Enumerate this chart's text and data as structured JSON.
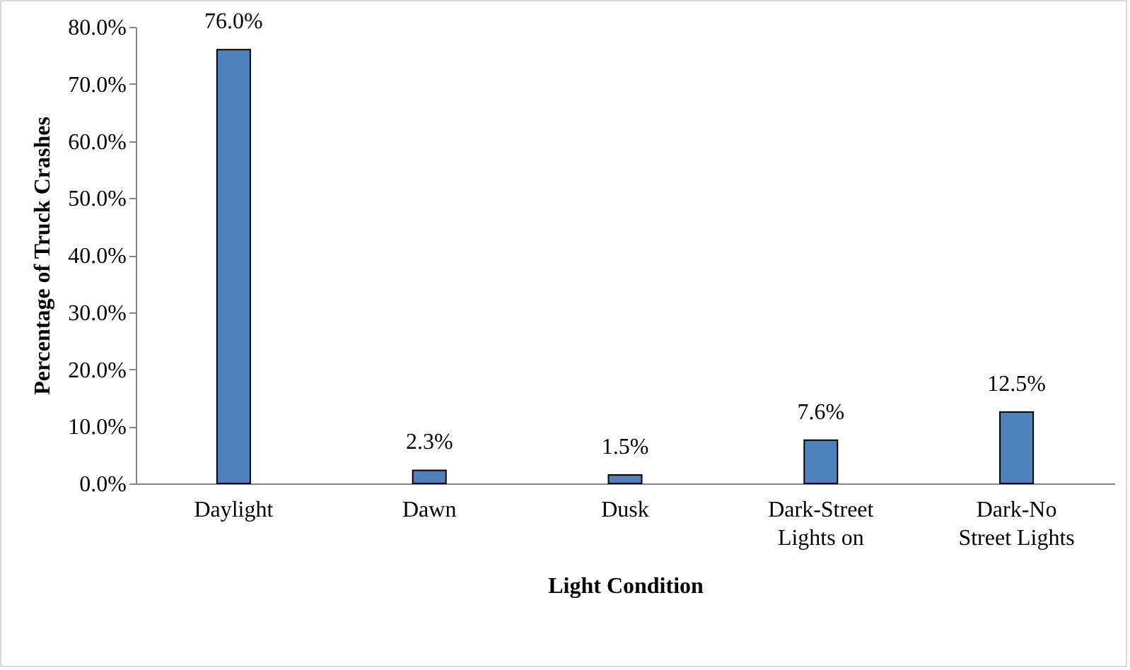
{
  "chart_data": {
    "type": "bar",
    "xlabel": "Light Condition",
    "ylabel": "Percentage of Truck Crashes",
    "categories": [
      "Daylight",
      "Dawn",
      "Dusk",
      "Dark-Street Lights on",
      "Dark-No Street Lights"
    ],
    "values": [
      76.0,
      2.3,
      1.5,
      7.6,
      12.5
    ],
    "value_labels": [
      "76.0%",
      "2.3%",
      "1.5%",
      "7.6%",
      "12.5%"
    ],
    "color": "#4f81bd",
    "ylim": [
      0,
      80
    ],
    "yticks": [
      {
        "value": 0,
        "label": "0.0%"
      },
      {
        "value": 10,
        "label": "10.0%"
      },
      {
        "value": 20,
        "label": "20.0%"
      },
      {
        "value": 30,
        "label": "30.0%"
      },
      {
        "value": 40,
        "label": "40.0%"
      },
      {
        "value": 50,
        "label": "50.0%"
      },
      {
        "value": 60,
        "label": "60.0%"
      },
      {
        "value": 70,
        "label": "70.0%"
      },
      {
        "value": 80,
        "label": "80.0%"
      }
    ],
    "grid": false
  }
}
